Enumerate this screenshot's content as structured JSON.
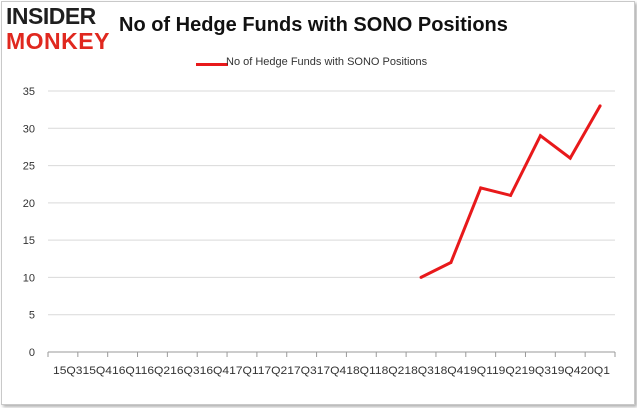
{
  "logo": {
    "line1": "INSIDER",
    "line2": "MONKEY"
  },
  "chart_data": {
    "type": "line",
    "title": "No of Hedge Funds with SONO Positions",
    "legend": "No of Hedge Funds with SONO Positions",
    "legend_position": "top-center",
    "xlabel": "",
    "ylabel": "",
    "ylim": [
      0,
      35
    ],
    "yticks": [
      0,
      5,
      10,
      15,
      20,
      25,
      30,
      35
    ],
    "grid": true,
    "x_tick_labels_concatenated": "15Q315Q416Q116Q216Q316Q417Q117Q217Q317Q418Q118Q218Q318Q419Q119Q219Q319Q420Q1",
    "categories": [
      "2015 Q3",
      "2015 Q4",
      "2016 Q1",
      "2016 Q2",
      "2016 Q3",
      "2016 Q4",
      "2017 Q1",
      "2017 Q2",
      "2017 Q3",
      "2017 Q4",
      "2018 Q1",
      "2018 Q2",
      "2018 Q3",
      "2018 Q4",
      "2019 Q1",
      "2019 Q2",
      "2019 Q3",
      "2019 Q4",
      "2020 Q1"
    ],
    "series": [
      {
        "name": "No of Hedge Funds with SONO Positions",
        "color": "#e8191b",
        "values": [
          null,
          null,
          null,
          null,
          null,
          null,
          null,
          null,
          null,
          null,
          null,
          null,
          10,
          12,
          22,
          21,
          29,
          26,
          33
        ]
      }
    ]
  }
}
